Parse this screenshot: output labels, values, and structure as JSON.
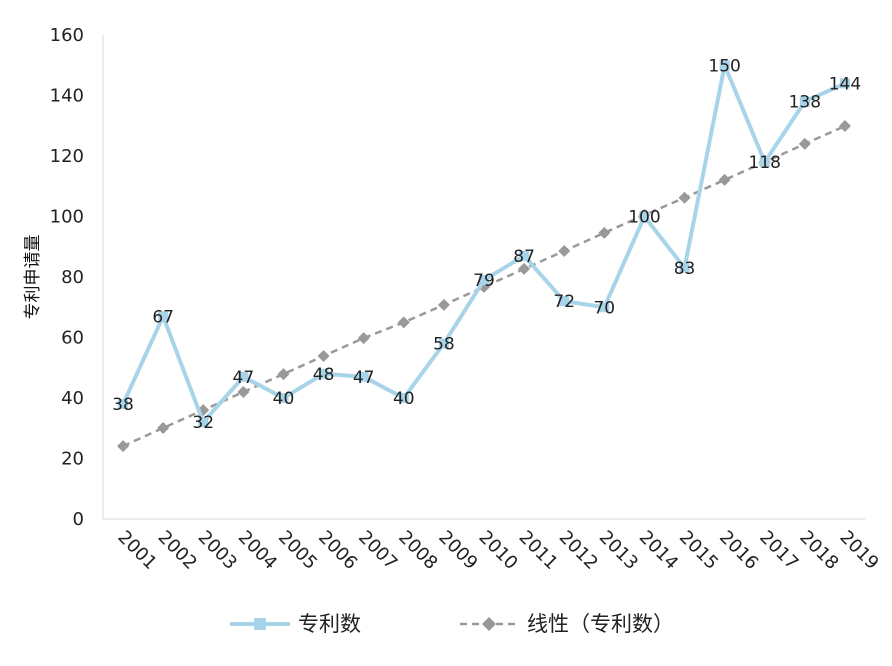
{
  "chart_data": {
    "type": "line",
    "ylabel": "专利申请量",
    "ylim": [
      0,
      160
    ],
    "yticks": [
      0,
      20,
      40,
      60,
      80,
      100,
      120,
      140,
      160
    ],
    "categories": [
      "2001",
      "2002",
      "2003",
      "2004",
      "2005",
      "2006",
      "2007",
      "2008",
      "2009",
      "2010",
      "2011",
      "2012",
      "2013",
      "2014",
      "2015",
      "2016",
      "2017",
      "2018",
      "2019"
    ],
    "series": [
      {
        "name": "专利数",
        "color": "#a8d4ea",
        "marker": "square",
        "values": [
          38,
          67,
          32,
          47,
          40,
          48,
          47,
          40,
          58,
          79,
          87,
          72,
          70,
          100,
          83,
          150,
          118,
          138,
          144
        ],
        "labels": [
          "38",
          "67",
          "32",
          "47",
          "40",
          "48",
          "47",
          "40",
          "58",
          "79",
          "87",
          "72",
          "70",
          "100",
          "83",
          "150",
          "118",
          "138",
          "144"
        ]
      },
      {
        "name": "线性（专利数）",
        "color": "#999999",
        "marker": "diamond",
        "dashed": true,
        "values": [
          24.1,
          30.1,
          36.0,
          42.0,
          47.9,
          53.9,
          59.8,
          65.0,
          70.8,
          76.7,
          82.7,
          88.6,
          94.6,
          100.5,
          106.2,
          112.1,
          118.0,
          124.0,
          129.9
        ]
      }
    ],
    "grid": false,
    "legend": "bottom"
  }
}
